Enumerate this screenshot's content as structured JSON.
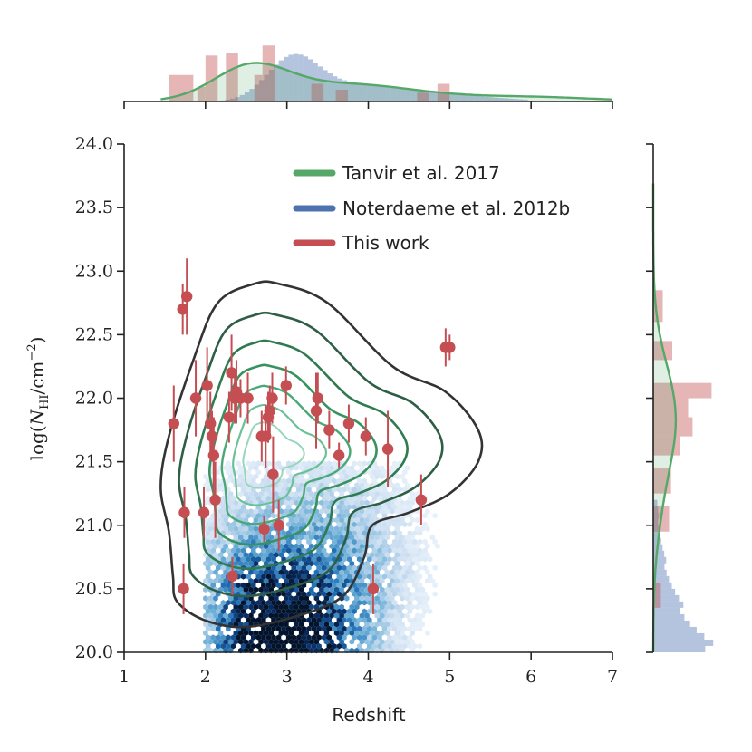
{
  "chart_data": {
    "type": "scatter",
    "title": "",
    "xlabel": "Redshift",
    "ylabel_parts": {
      "prefix": "log(",
      "n": "N",
      "sub": "HI",
      "unit": "/cm",
      "exp": "−2",
      "suffix": ")"
    },
    "xlim": [
      1,
      7
    ],
    "ylim": [
      20.0,
      24.0
    ],
    "xticks": [
      1,
      2,
      3,
      4,
      5,
      6,
      7
    ],
    "yticks": [
      "20.0",
      "20.5",
      "21.0",
      "21.5",
      "22.0",
      "22.5",
      "23.0",
      "23.5",
      "24.0"
    ],
    "legend": {
      "placement": "top-center",
      "entries": [
        {
          "label": "Tanvir et al. 2017",
          "color": "#55a868"
        },
        {
          "label": "Noterdaeme et al. 2012b",
          "color": "#4c72b0"
        },
        {
          "label": "This work",
          "color": "#c44e52"
        }
      ]
    },
    "series": [
      {
        "name": "This work",
        "kind": "points_with_errorbars",
        "color": "#c44e52",
        "points": [
          {
            "x": 1.61,
            "y": 21.8,
            "err": 0.3
          },
          {
            "x": 1.72,
            "y": 22.7,
            "err": 0.2
          },
          {
            "x": 1.77,
            "y": 22.8,
            "err": 0.3
          },
          {
            "x": 1.73,
            "y": 20.5,
            "err": 0.2
          },
          {
            "x": 1.74,
            "y": 21.1,
            "err": 0.2
          },
          {
            "x": 1.88,
            "y": 22.0,
            "err": 0.3
          },
          {
            "x": 1.98,
            "y": 21.1,
            "err": 0.2
          },
          {
            "x": 2.02,
            "y": 22.1,
            "err": 0.3
          },
          {
            "x": 2.06,
            "y": 21.8,
            "err": 0.25
          },
          {
            "x": 2.08,
            "y": 21.7,
            "err": 0.2
          },
          {
            "x": 2.1,
            "y": 21.55,
            "err": 0.3
          },
          {
            "x": 2.12,
            "y": 21.2,
            "err": 0.3
          },
          {
            "x": 2.29,
            "y": 21.85,
            "err": 0.2
          },
          {
            "x": 2.32,
            "y": 22.2,
            "err": 0.3
          },
          {
            "x": 2.33,
            "y": 20.6,
            "err": 0.15
          },
          {
            "x": 2.36,
            "y": 22.0,
            "err": 0.2
          },
          {
            "x": 2.38,
            "y": 22.05,
            "err": 0.25
          },
          {
            "x": 2.43,
            "y": 22.0,
            "err": 0.15
          },
          {
            "x": 2.52,
            "y": 22.0,
            "err": 0.2
          },
          {
            "x": 2.69,
            "y": 21.7,
            "err": 0.2
          },
          {
            "x": 2.72,
            "y": 20.97,
            "err": 0.1
          },
          {
            "x": 2.74,
            "y": 21.7,
            "err": 0.25
          },
          {
            "x": 2.77,
            "y": 21.85,
            "err": 0.2
          },
          {
            "x": 2.79,
            "y": 21.9,
            "err": 0.2
          },
          {
            "x": 2.82,
            "y": 22.0,
            "err": 0.2
          },
          {
            "x": 2.83,
            "y": 21.4,
            "err": 0.3
          },
          {
            "x": 2.9,
            "y": 21.0,
            "err": 0.2
          },
          {
            "x": 2.99,
            "y": 22.1,
            "err": 0.15
          },
          {
            "x": 3.36,
            "y": 21.9,
            "err": 0.3
          },
          {
            "x": 3.38,
            "y": 22.0,
            "err": 0.2
          },
          {
            "x": 3.52,
            "y": 21.75,
            "err": 0.15
          },
          {
            "x": 3.64,
            "y": 21.55,
            "err": 0.1
          },
          {
            "x": 3.76,
            "y": 21.8,
            "err": 0.15
          },
          {
            "x": 3.97,
            "y": 21.7,
            "err": 0.15
          },
          {
            "x": 4.06,
            "y": 20.5,
            "err": 0.2
          },
          {
            "x": 4.24,
            "y": 21.6,
            "err": 0.3
          },
          {
            "x": 4.65,
            "y": 21.2,
            "err": 0.2
          },
          {
            "x": 4.95,
            "y": 22.4,
            "err": 0.15
          },
          {
            "x": 5.0,
            "y": 22.4,
            "err": 0.1
          }
        ]
      },
      {
        "name": "Noterdaeme et al. 2012b",
        "kind": "hexbin_density",
        "color": "#4c72b0",
        "peak": {
          "x": 3.0,
          "y": 20.05
        },
        "x_range": [
          2.0,
          5.0
        ],
        "y_range": [
          20.0,
          21.5
        ]
      },
      {
        "name": "Tanvir et al. 2017",
        "kind": "kde_contours",
        "color": "#55a868",
        "center": {
          "x": 2.7,
          "y": 21.55
        },
        "outer_contour": [
          [
            2.6,
            22.9
          ],
          [
            2.15,
            22.75
          ],
          [
            1.85,
            22.3
          ],
          [
            1.55,
            21.7
          ],
          [
            1.45,
            21.3
          ],
          [
            1.55,
            20.95
          ],
          [
            1.6,
            20.6
          ],
          [
            1.65,
            20.4
          ],
          [
            2.0,
            20.25
          ],
          [
            2.5,
            20.2
          ],
          [
            3.2,
            20.3
          ],
          [
            3.7,
            20.45
          ],
          [
            3.95,
            20.75
          ],
          [
            4.05,
            21.0
          ],
          [
            4.5,
            21.1
          ],
          [
            5.0,
            21.25
          ],
          [
            5.35,
            21.5
          ],
          [
            5.35,
            21.75
          ],
          [
            4.95,
            22.05
          ],
          [
            4.3,
            22.25
          ],
          [
            3.5,
            22.75
          ],
          [
            2.9,
            22.9
          ]
        ],
        "inner_levels": 6
      }
    ],
    "top_histogram": {
      "axis": "x",
      "ticks": [
        1,
        2,
        3,
        4,
        5,
        6,
        7
      ],
      "this_work_bins": [
        [
          1.55,
          1.85,
          0.45
        ],
        [
          1.9,
          2.0,
          0.25
        ],
        [
          2.0,
          2.15,
          0.78
        ],
        [
          2.25,
          2.4,
          0.82
        ],
        [
          2.6,
          2.7,
          0.45
        ],
        [
          2.7,
          2.85,
          0.95
        ],
        [
          3.3,
          3.45,
          0.3
        ],
        [
          3.6,
          3.75,
          0.2
        ],
        [
          4.6,
          4.75,
          0.15
        ],
        [
          4.85,
          5.0,
          0.3
        ]
      ],
      "kde_peak_x": 2.55
    },
    "right_histogram": {
      "axis": "y",
      "ticks": [
        "20.0",
        "20.5",
        "21.0",
        "21.5",
        "22.0",
        "22.5",
        "23.0",
        "23.5",
        "24.0"
      ],
      "kde_peak_y": 21.85
    }
  }
}
